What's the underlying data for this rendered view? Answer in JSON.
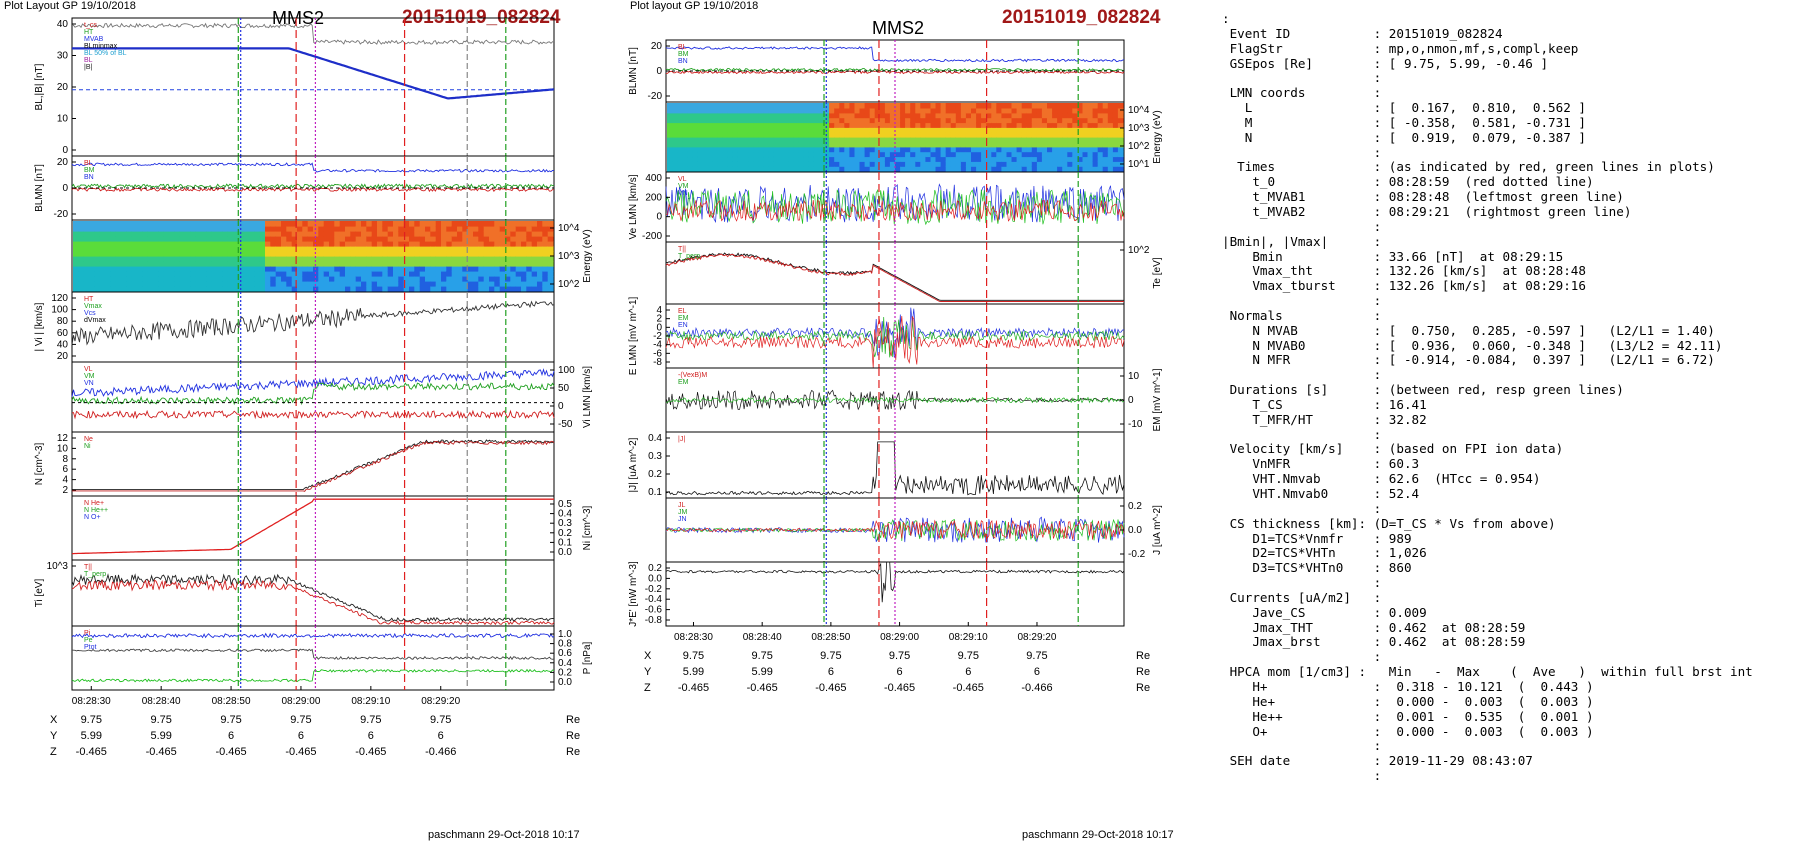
{
  "chart_data": {
    "type": "line",
    "panels": {
      "header": {
        "layout_label": "Plot Layout GP 19/10/2018",
        "layout_label2": "Plot layout GP 19/10/2018",
        "spacecraft": "MMS2",
        "event": "20151019_082824"
      },
      "footer": "paschmann 29-Oct-2018 10:17",
      "time_ticks": [
        "08:28:30",
        "08:28:40",
        "08:28:50",
        "08:29:00",
        "08:29:10",
        "08:29:20"
      ],
      "coords": {
        "labels": [
          "X",
          "Y",
          "Z"
        ],
        "unit": "Re",
        "X": [
          "9.75",
          "9.75",
          "9.75",
          "9.75",
          "9.75",
          "9.75"
        ],
        "Y": [
          "5.99",
          "5.99",
          "6",
          "6",
          "6",
          "6"
        ],
        "Z": [
          "-0.465",
          "-0.465",
          "-0.465",
          "-0.465",
          "-0.465",
          "-0.466"
        ]
      },
      "left": [
        {
          "ylabel": "BL,|B| [nT]",
          "ticks": [
            "40",
            "30",
            "20",
            "10",
            "0"
          ],
          "legend": [
            "t_cs",
            "HT",
            "MVAB",
            "BLminmax",
            "BL 50% of BL",
            "BL",
            "|B|"
          ]
        },
        {
          "ylabel": "BLMN [nT]",
          "ticks": [
            "20",
            "0",
            "-20"
          ],
          "legend": [
            "BL",
            "BM",
            "BN"
          ]
        },
        {
          "ylabel": "Energy (eV)",
          "ticks_right": [
            "10^4",
            "10^3",
            "10^2"
          ]
        },
        {
          "ylabel": "| Vi | [km/s]",
          "ticks": [
            "120",
            "100",
            "80",
            "60",
            "40",
            "20"
          ],
          "legend": [
            "HT",
            "Vmax",
            "Vcs",
            "dVmax"
          ]
        },
        {
          "ylabel": "Vi LMN [km/s]",
          "ticks_right": [
            "100",
            "50",
            "0",
            "-50"
          ],
          "legend": [
            "VL",
            "VM",
            "VN"
          ]
        },
        {
          "ylabel": "N [cm^-3]",
          "ticks": [
            "12",
            "10",
            "8",
            "6",
            "4",
            "2"
          ],
          "legend": [
            "Ne",
            "Ni"
          ]
        },
        {
          "ylabel": "Ni [cm^-3]",
          "ticks_right": [
            "0.5",
            "0.4",
            "0.3",
            "0.2",
            "0.1",
            "0.0"
          ],
          "legend": [
            "N He+",
            "N He++",
            "N O+"
          ]
        },
        {
          "ylabel": "Ti [eV]",
          "ticks": [
            "10^3"
          ],
          "legend": [
            "T||",
            "T_perp"
          ]
        },
        {
          "ylabel": "P [nPa]",
          "ticks_right": [
            "1.0",
            "0.8",
            "0.6",
            "0.4",
            "0.2",
            "0.0"
          ],
          "legend": [
            "Pi",
            "Pe",
            "Ptot"
          ]
        }
      ],
      "right": [
        {
          "ylabel": "BLMN [nT]",
          "ticks": [
            "20",
            "0",
            "-20"
          ],
          "legend": [
            "BL",
            "BM",
            "BN"
          ]
        },
        {
          "ylabel": "Energy (eV)",
          "ticks_right": [
            "10^4",
            "10^3",
            "10^2",
            "10^1"
          ]
        },
        {
          "ylabel": "Ve LMN [km/s]",
          "ticks": [
            "400",
            "200",
            "0",
            "-200"
          ],
          "legend": [
            "VL",
            "VM",
            "VN"
          ]
        },
        {
          "ylabel": "Te [eV]",
          "ticks_right": [
            "10^2"
          ],
          "legend": [
            "T||",
            "T_perp"
          ]
        },
        {
          "ylabel": "E LMN [mV m^-1]",
          "ticks": [
            "4",
            "2",
            "0",
            "-2",
            "-4",
            "-6",
            "-8"
          ],
          "legend": [
            "EL",
            "EM",
            "EN"
          ]
        },
        {
          "ylabel": "EM [mV m^-1]",
          "ticks_right": [
            "10",
            "0",
            "-10"
          ],
          "legend": [
            "-(VexB)M",
            "EM"
          ]
        },
        {
          "ylabel": "|J| [uA m^-2]",
          "ticks": [
            "0.4",
            "0.3",
            "0.2",
            "0.1"
          ],
          "legend": [
            "|J|"
          ]
        },
        {
          "ylabel": "J [uA m^-2]",
          "ticks_right": [
            "0.2",
            "0.0",
            "-0.2"
          ],
          "legend": [
            "JL",
            "JM",
            "JN"
          ]
        },
        {
          "ylabel": "J*E' [nW m^-3]",
          "ticks": [
            "0.2",
            "0.0",
            "-0.2",
            "-0.4",
            "-0.6",
            "-0.8"
          ]
        }
      ]
    }
  },
  "info_text": ":\n Event ID           : 20151019_082824\n FlagStr            : mp,o,nmon,mf,s,compl,keep\n GSEpos [Re]        : [ 9.75, 5.99, -0.46 ]\n                    :\n LMN coords         :\n   L                : [  0.167,  0.810,  0.562 ]\n   M                : [ -0.358,  0.581, -0.731 ]\n   N                : [  0.919,  0.079, -0.387 ]\n                    :\n  Times             : (as indicated by red, green lines in plots)\n    t_0             : 08:28:59  (red dotted line)\n    t_MVAB1         : 08:28:48  (leftmost green line)\n    t_MVAB2         : 08:29:21  (rightmost green line)\n                    :\n|Bmin|, |Vmax|      :\n    Bmin            : 33.66 [nT]  at 08:29:15\n    Vmax_tht        : 132.26 [km/s]  at 08:28:48\n    Vmax_tburst     : 132.26 [km/s]  at 08:29:16\n                    :\n Normals            :\n    N MVAB          : [  0.750,  0.285, -0.597 ]   (L2/L1 = 1.40)\n    N MVAB0         : [  0.936,  0.060, -0.348 ]   (L3/L2 = 42.11)\n    N MFR           : [ -0.914, -0.084,  0.397 ]   (L2/L1 = 6.72)\n                    :\n Durations [s]      : (between red, resp green lines)\n    T_CS            : 16.41\n    T_MFR/HT        : 32.82\n                    :\n Velocity [km/s]    : (based on FPI ion data)\n    VnMFR           : 60.3\n    VHT.Nmvab       : 62.6  (HTcc = 0.954)\n    VHT.Nmvab0      : 52.4\n                    :\n CS thickness [km]: (D=T_CS * Vs from above)\n    D1=TCS*Vnmfr    : 989\n    D2=TCS*VHTn     : 1,026\n    D3=TCS*VHTn0    : 860\n                    :\n Currents [uA/m2]   :\n    Jave_CS         : 0.009\n    Jmax_THT        : 0.462  at 08:28:59\n    Jmax_brst       : 0.462  at 08:28:59\n                    :\n HPCA mom [1/cm3] :   Min   -  Max    (  Ave   )  within full brst int\n    H+              :  0.318 - 10.121  (  0.443 )\n    He+             :  0.000 -  0.003  (  0.003 )\n    He++            :  0.001 -  0.535  (  0.001 )\n    O+              :  0.000 -  0.003  (  0.003 )\n                    :\n SEH date           : 2019-11-29 08:43:07\n                    :"
}
